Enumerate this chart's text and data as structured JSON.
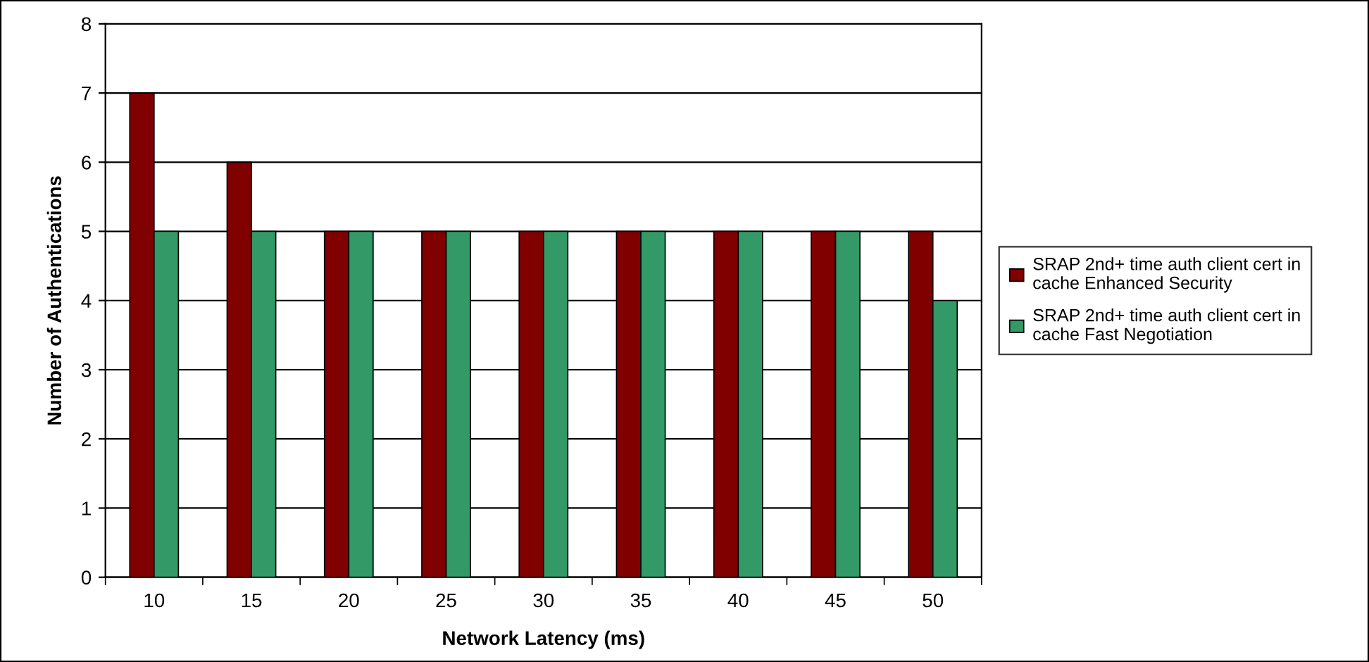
{
  "chart_data": {
    "type": "bar",
    "xlabel": "Network Latency (ms)",
    "ylabel": "Number of Authentications",
    "categories": [
      "10",
      "15",
      "20",
      "25",
      "30",
      "35",
      "40",
      "45",
      "50"
    ],
    "series": [
      {
        "name": "SRAP 2nd+ time auth client cert in cache Enhanced Security",
        "color": "#800000",
        "values": [
          7,
          6,
          5,
          5,
          5,
          5,
          5,
          5,
          5
        ]
      },
      {
        "name": "SRAP 2nd+ time auth client cert in cache Fast Negotiation",
        "color": "#339966",
        "values": [
          5,
          5,
          5,
          5,
          5,
          5,
          5,
          5,
          4
        ]
      }
    ],
    "ylim": [
      0,
      8
    ],
    "yticks": [
      0,
      1,
      2,
      3,
      4,
      5,
      6,
      7,
      8
    ],
    "grid": "y",
    "legend": "right"
  }
}
